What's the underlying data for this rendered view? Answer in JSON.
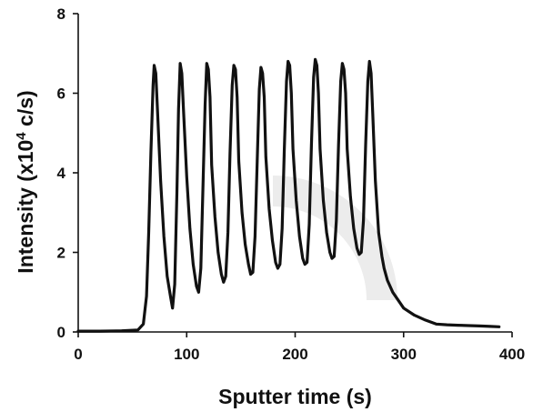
{
  "chart_data": {
    "type": "line",
    "title": "",
    "xlabel": "Sputter time (s)",
    "ylabel_prefix": "Intensity (x10",
    "ylabel_sup": "4",
    "ylabel_suffix": " c/s)",
    "xlim": [
      0,
      400
    ],
    "ylim": [
      0,
      8
    ],
    "xticks": [
      0,
      100,
      200,
      300,
      400
    ],
    "yticks": [
      0,
      2,
      4,
      6,
      8
    ],
    "grid": false,
    "legend": "none",
    "line_color": "#111111",
    "series": [
      {
        "x": [
          0,
          20,
          40,
          55,
          60,
          63,
          65,
          67,
          69,
          70,
          71.5,
          73,
          76,
          79,
          82,
          85,
          87,
          89,
          91,
          92.5,
          94,
          95.5,
          97,
          100,
          103,
          106,
          109,
          111,
          113,
          115,
          117,
          118.5,
          120,
          121.5,
          123,
          126,
          129,
          132,
          134,
          136,
          138,
          140,
          142,
          143.5,
          145,
          146.5,
          148,
          151,
          154,
          157,
          159,
          161,
          163,
          165,
          167,
          168.5,
          170,
          171.5,
          173,
          176,
          179,
          182,
          184,
          186,
          188,
          190,
          192,
          193.5,
          195,
          196.5,
          198,
          201,
          204,
          207,
          209,
          211,
          213,
          215,
          217,
          218.5,
          220,
          221.5,
          223,
          226,
          229,
          232,
          234,
          236,
          238,
          240,
          242,
          243.5,
          245,
          246.5,
          248,
          251,
          254,
          257,
          259,
          261,
          263,
          265,
          267,
          268.5,
          270,
          271.5,
          274,
          277,
          280,
          282,
          285,
          290,
          300,
          310,
          320,
          330,
          340,
          350,
          360,
          370,
          380,
          388
        ],
        "y": [
          0.02,
          0.02,
          0.03,
          0.05,
          0.2,
          0.9,
          2.5,
          4.5,
          6.2,
          6.7,
          6.5,
          5.6,
          3.8,
          2.4,
          1.4,
          0.9,
          0.6,
          1.2,
          3.5,
          5.6,
          6.75,
          6.5,
          5.6,
          3.9,
          2.6,
          1.7,
          1.15,
          1.0,
          1.6,
          3.6,
          5.7,
          6.75,
          6.6,
          5.9,
          4.2,
          2.9,
          2.0,
          1.45,
          1.25,
          1.4,
          2.5,
          4.5,
          6.2,
          6.7,
          6.6,
          5.9,
          4.3,
          3.0,
          2.2,
          1.7,
          1.45,
          1.5,
          2.4,
          4.3,
          6.1,
          6.65,
          6.5,
          5.9,
          4.4,
          3.1,
          2.3,
          1.75,
          1.6,
          1.7,
          2.6,
          4.6,
          6.3,
          6.8,
          6.7,
          6.0,
          4.6,
          3.3,
          2.4,
          1.85,
          1.7,
          1.75,
          2.7,
          4.7,
          6.4,
          6.85,
          6.7,
          6.0,
          4.6,
          3.3,
          2.5,
          2.0,
          1.85,
          1.9,
          2.8,
          4.7,
          6.3,
          6.75,
          6.6,
          6.0,
          4.6,
          3.4,
          2.6,
          2.1,
          1.95,
          2.0,
          2.8,
          4.7,
          6.3,
          6.8,
          6.5,
          5.5,
          3.8,
          2.5,
          1.9,
          1.6,
          1.3,
          1.0,
          0.6,
          0.42,
          0.3,
          0.2,
          0.18,
          0.17,
          0.16,
          0.15,
          0.14,
          0.13
        ]
      }
    ]
  }
}
